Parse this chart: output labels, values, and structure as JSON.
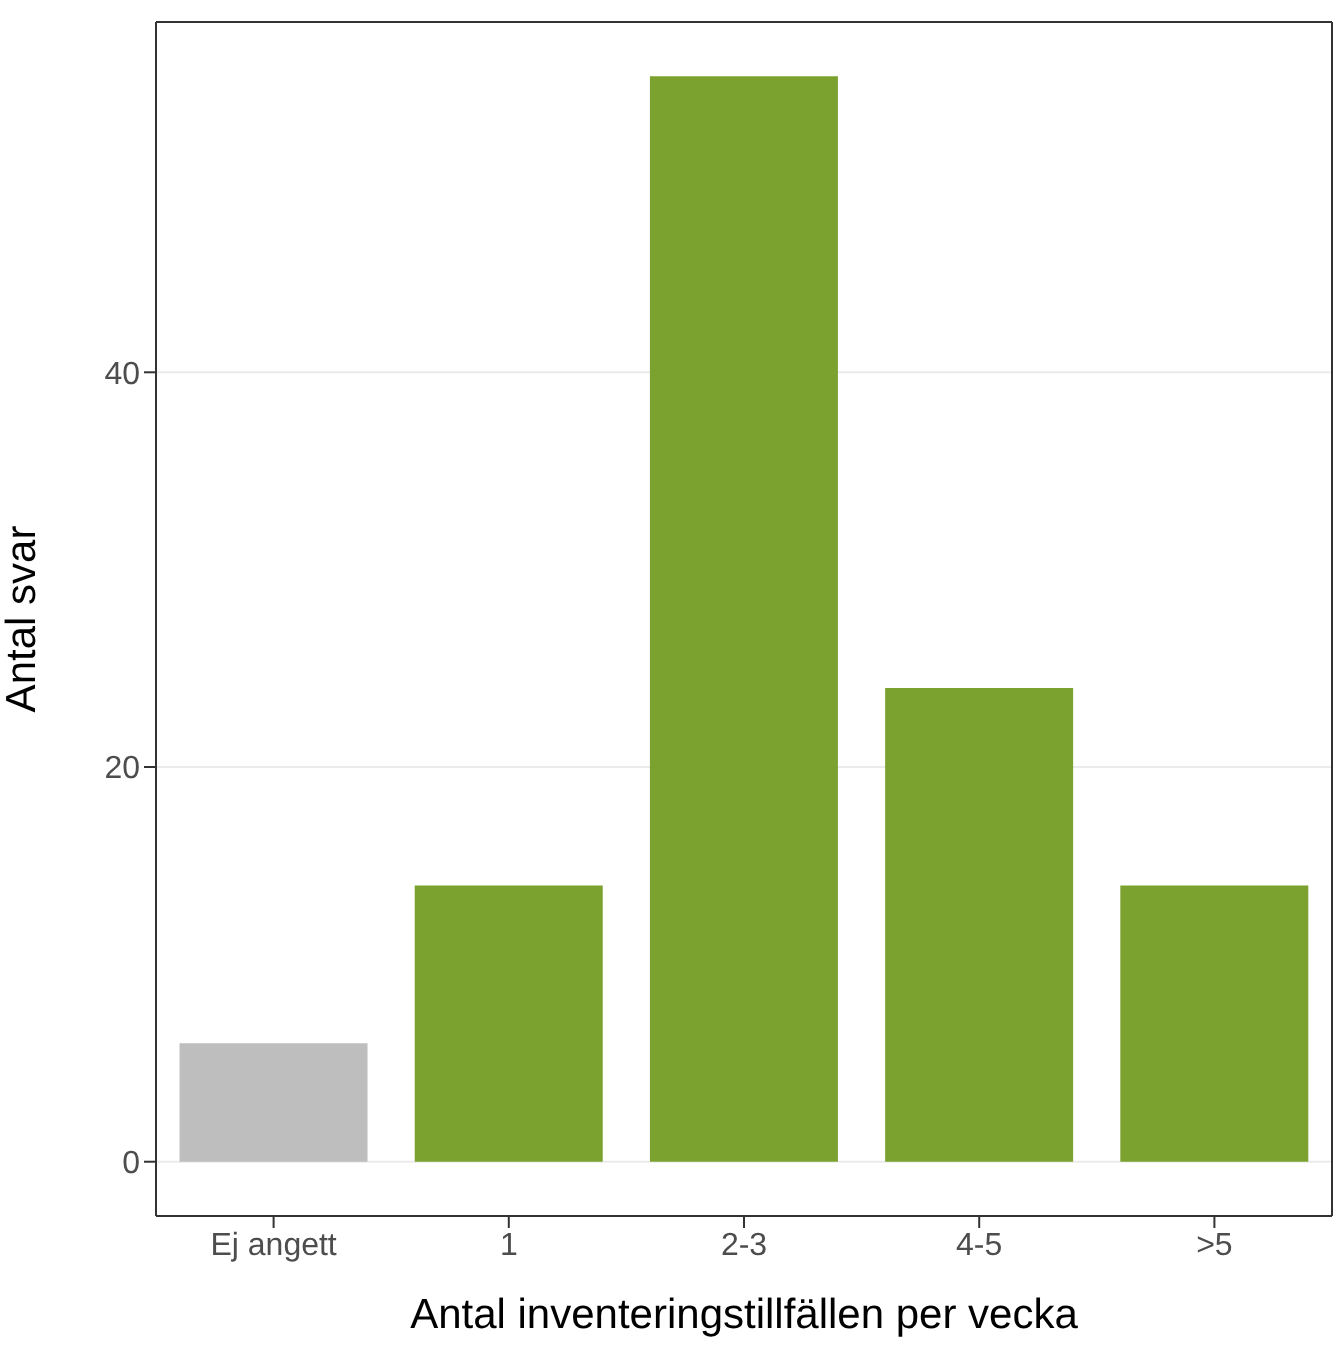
{
  "chart_data": {
    "type": "bar",
    "xlabel": "Antal inventeringstillfällen per vecka",
    "ylabel": "Antal svar",
    "categories": [
      "Ej angett",
      "1",
      "2-3",
      "4-5",
      ">5"
    ],
    "values": [
      6,
      14,
      55,
      24,
      14
    ],
    "colors": [
      "#bebebe",
      "#7ba22f",
      "#7ba22f",
      "#7ba22f",
      "#7ba22f"
    ],
    "ylim": [
      -2.75,
      57.75
    ],
    "yticks": [
      0,
      20,
      40
    ],
    "grid": "y"
  }
}
